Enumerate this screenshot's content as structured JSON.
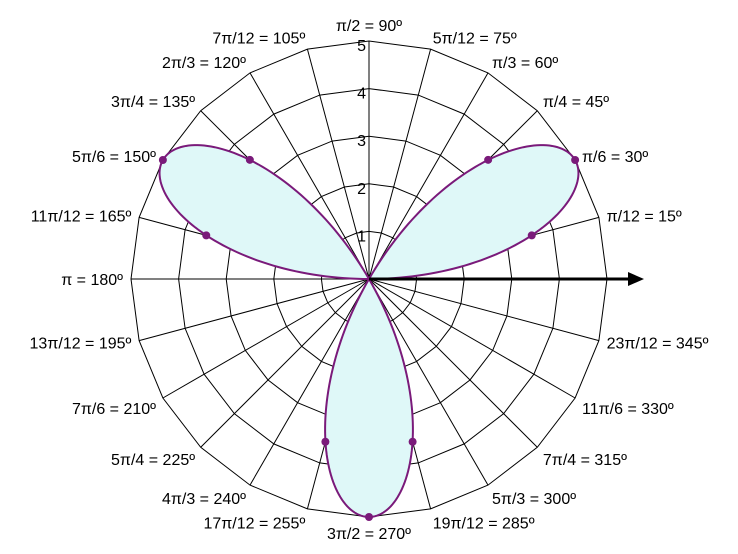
{
  "chart_data": {
    "type": "polar-line",
    "function": "r = 5 sin(3θ)",
    "r_ticks": [
      "1",
      "2",
      "3",
      "4",
      "5"
    ],
    "rlim": [
      0,
      5
    ],
    "angle_step_degrees": 15,
    "grid": true,
    "angle_labels": [
      {
        "deg": 0,
        "text": ""
      },
      {
        "deg": 15,
        "text": "π/12 = 15º"
      },
      {
        "deg": 30,
        "text": "π/6 = 30º"
      },
      {
        "deg": 45,
        "text": "π/4 = 45º"
      },
      {
        "deg": 60,
        "text": "π/3 = 60º"
      },
      {
        "deg": 75,
        "text": "5π/12 = 75º"
      },
      {
        "deg": 90,
        "text": "π/2 = 90º"
      },
      {
        "deg": 105,
        "text": "7π/12 = 105º"
      },
      {
        "deg": 120,
        "text": "2π/3 = 120º"
      },
      {
        "deg": 135,
        "text": "3π/4 = 135º"
      },
      {
        "deg": 150,
        "text": "5π/6 = 150º"
      },
      {
        "deg": 165,
        "text": "11π/12 = 165º"
      },
      {
        "deg": 180,
        "text": "π = 180º"
      },
      {
        "deg": 195,
        "text": "13π/12 = 195º"
      },
      {
        "deg": 210,
        "text": "7π/6 = 210º"
      },
      {
        "deg": 225,
        "text": "5π/4 = 225º"
      },
      {
        "deg": 240,
        "text": "4π/3 = 240º"
      },
      {
        "deg": 255,
        "text": "17π/12 = 255º"
      },
      {
        "deg": 270,
        "text": "3π/2 = 270º"
      },
      {
        "deg": 285,
        "text": "19π/12 = 285º"
      },
      {
        "deg": 300,
        "text": "5π/3 = 300º"
      },
      {
        "deg": 315,
        "text": "7π/4 = 315º"
      },
      {
        "deg": 330,
        "text": "11π/6 = 330º"
      },
      {
        "deg": 345,
        "text": "23π/12 = 345º"
      }
    ],
    "points": [
      {
        "theta": 15,
        "r": 3.54
      },
      {
        "theta": 30,
        "r": 5
      },
      {
        "theta": 45,
        "r": 3.54
      },
      {
        "theta": 135,
        "r": 3.54
      },
      {
        "theta": 150,
        "r": 5
      },
      {
        "theta": 165,
        "r": 3.54
      },
      {
        "theta": 255,
        "r": 3.54
      },
      {
        "theta": 270,
        "r": 5
      },
      {
        "theta": 285,
        "r": 3.54
      }
    ],
    "colors": {
      "curve": "#7a1a7a",
      "fill": "#dff8f8",
      "grid": "#000000",
      "axis": "#000000"
    }
  }
}
